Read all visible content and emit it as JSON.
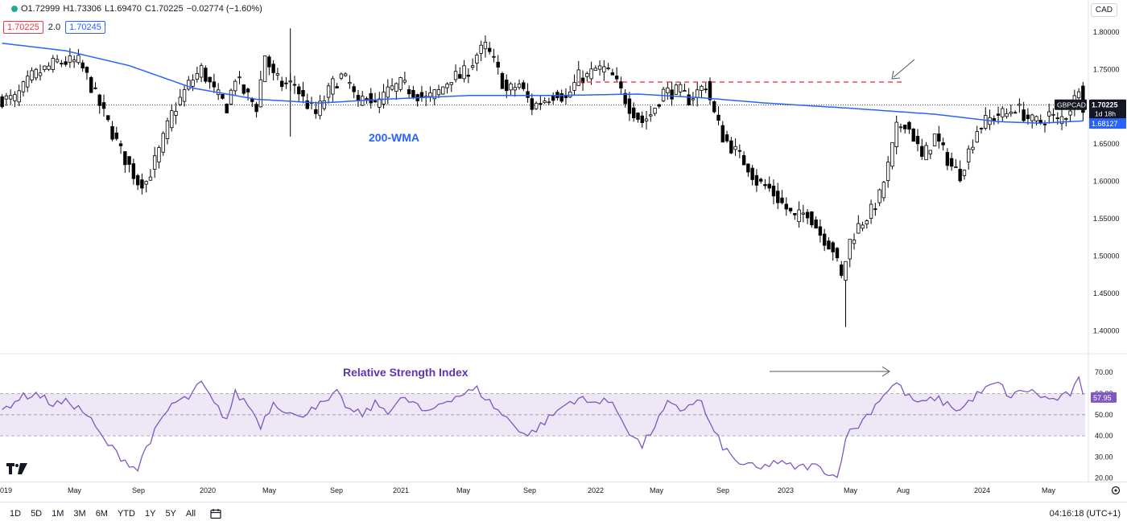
{
  "header": {
    "open": "O1.72999",
    "high": "H1.73306",
    "low": "L1.69470",
    "close": "C1.70225",
    "change": "−0.02774 (−1.60%)",
    "currency_button": "CAD",
    "indicator_chip_left": "1.70225",
    "indicator_param": "2.0",
    "indicator_chip_right": "1.70245",
    "status_color": "#22ab94"
  },
  "toolbar": {
    "timeframes": [
      "1D",
      "5D",
      "1M",
      "3M",
      "6M",
      "YTD",
      "1Y",
      "5Y",
      "All"
    ],
    "clock": "04:16:18 (UTC+1)",
    "calendar_icon": "calendar-range-icon",
    "settings_icon": "gear-icon"
  },
  "chart_data": [
    {
      "type": "candlestick",
      "symbol": "GBPCAD",
      "last_price": "1.70225",
      "countdown": "1d 18h",
      "ma_label": "1.68127",
      "annotations": {
        "ma_text": "200-WMA",
        "resistance_level": 1.733
      },
      "ylim": [
        1.38,
        1.83
      ],
      "y_ticks": [
        "1.80000",
        "1.75000",
        "1.70000",
        "1.65000",
        "1.60000",
        "1.55000",
        "1.50000",
        "1.45000",
        "1.40000"
      ],
      "x_ticks": [
        "019",
        "May",
        "Sep",
        "2020",
        "May",
        "Sep",
        "2021",
        "May",
        "Sep",
        "2022",
        "May",
        "Sep",
        "2023",
        "May",
        "Aug",
        "2024",
        "May"
      ],
      "colors": {
        "up": "#ffffff",
        "down": "#000000",
        "wick": "#000000",
        "ma": "#2962ff",
        "resistance": "#f23645",
        "pane_bg": "#ffffff"
      },
      "anchors": [
        [
          0,
          1.71
        ],
        [
          3,
          1.71
        ],
        [
          7,
          1.74
        ],
        [
          10,
          1.75
        ],
        [
          13,
          1.76
        ],
        [
          15,
          1.76
        ],
        [
          18,
          1.76
        ],
        [
          20,
          1.74
        ],
        [
          24,
          1.69
        ],
        [
          28,
          1.64
        ],
        [
          32,
          1.6
        ],
        [
          34,
          1.6
        ],
        [
          37,
          1.64
        ],
        [
          40,
          1.69
        ],
        [
          44,
          1.73
        ],
        [
          47,
          1.75
        ],
        [
          50,
          1.72
        ],
        [
          53,
          1.7
        ],
        [
          55,
          1.74
        ],
        [
          57,
          1.72
        ],
        [
          60,
          1.7
        ],
        [
          62,
          1.77
        ],
        [
          64,
          1.74
        ],
        [
          66,
          1.73
        ],
        [
          69,
          1.73
        ],
        [
          71,
          1.71
        ],
        [
          74,
          1.69
        ],
        [
          78,
          1.73
        ],
        [
          80,
          1.74
        ],
        [
          82,
          1.73
        ],
        [
          84,
          1.7
        ],
        [
          86,
          1.72
        ],
        [
          88,
          1.7
        ],
        [
          91,
          1.72
        ],
        [
          94,
          1.73
        ],
        [
          97,
          1.72
        ],
        [
          100,
          1.71
        ],
        [
          103,
          1.72
        ],
        [
          106,
          1.74
        ],
        [
          108,
          1.74
        ],
        [
          110,
          1.75
        ],
        [
          112,
          1.77
        ],
        [
          114,
          1.78
        ],
        [
          116,
          1.76
        ],
        [
          119,
          1.72
        ],
        [
          122,
          1.73
        ],
        [
          125,
          1.7
        ],
        [
          128,
          1.71
        ],
        [
          131,
          1.72
        ],
        [
          133,
          1.71
        ],
        [
          136,
          1.74
        ],
        [
          138,
          1.74
        ],
        [
          140,
          1.75
        ],
        [
          142,
          1.75
        ],
        [
          144,
          1.74
        ],
        [
          146,
          1.72
        ],
        [
          148,
          1.7
        ],
        [
          151,
          1.68
        ],
        [
          153,
          1.69
        ],
        [
          156,
          1.72
        ],
        [
          158,
          1.72
        ],
        [
          160,
          1.72
        ],
        [
          162,
          1.71
        ],
        [
          164,
          1.72
        ],
        [
          166,
          1.73
        ],
        [
          168,
          1.69
        ],
        [
          170,
          1.66
        ],
        [
          173,
          1.64
        ],
        [
          176,
          1.62
        ],
        [
          178,
          1.6
        ],
        [
          181,
          1.59
        ],
        [
          184,
          1.57
        ],
        [
          187,
          1.55
        ],
        [
          190,
          1.56
        ],
        [
          193,
          1.53
        ],
        [
          196,
          1.51
        ],
        [
          198,
          1.47
        ],
        [
          200,
          1.52
        ],
        [
          202,
          1.54
        ],
        [
          205,
          1.56
        ],
        [
          207,
          1.58
        ],
        [
          209,
          1.62
        ],
        [
          211,
          1.67
        ],
        [
          213,
          1.68
        ],
        [
          215,
          1.66
        ],
        [
          217,
          1.63
        ],
        [
          220,
          1.66
        ],
        [
          222,
          1.64
        ],
        [
          224,
          1.62
        ],
        [
          226,
          1.61
        ],
        [
          228,
          1.64
        ],
        [
          230,
          1.67
        ],
        [
          232,
          1.68
        ],
        [
          235,
          1.69
        ],
        [
          237,
          1.69
        ],
        [
          239,
          1.7
        ],
        [
          241,
          1.69
        ],
        [
          243,
          1.68
        ],
        [
          245,
          1.68
        ],
        [
          247,
          1.69
        ],
        [
          249,
          1.68
        ],
        [
          251,
          1.69
        ],
        [
          253,
          1.71
        ],
        [
          254,
          1.73
        ],
        [
          255,
          1.702
        ]
      ],
      "ma_path": [
        [
          0,
          1.785
        ],
        [
          15,
          1.775
        ],
        [
          30,
          1.755
        ],
        [
          45,
          1.725
        ],
        [
          60,
          1.71
        ],
        [
          75,
          1.705
        ],
        [
          90,
          1.71
        ],
        [
          110,
          1.715
        ],
        [
          130,
          1.715
        ],
        [
          150,
          1.717
        ],
        [
          165,
          1.712
        ],
        [
          180,
          1.705
        ],
        [
          200,
          1.698
        ],
        [
          220,
          1.69
        ],
        [
          235,
          1.68
        ],
        [
          245,
          1.678
        ],
        [
          255,
          1.681
        ]
      ]
    },
    {
      "type": "line",
      "title": "Relative Strength Index",
      "last_value": "57.95",
      "ylim": [
        18,
        75
      ],
      "y_ticks": [
        "70.00",
        "60.00",
        "50.00",
        "40.00",
        "30.00",
        "20.00"
      ],
      "band": [
        40,
        60
      ],
      "colors": {
        "line": "#7e57c2",
        "band_fill": "#ede7f6"
      },
      "anchors": [
        [
          0,
          52
        ],
        [
          4,
          58
        ],
        [
          8,
          60
        ],
        [
          12,
          55
        ],
        [
          16,
          56
        ],
        [
          20,
          50
        ],
        [
          24,
          38
        ],
        [
          28,
          30
        ],
        [
          32,
          24
        ],
        [
          34,
          35
        ],
        [
          37,
          45
        ],
        [
          40,
          55
        ],
        [
          44,
          58
        ],
        [
          47,
          65
        ],
        [
          50,
          55
        ],
        [
          53,
          48
        ],
        [
          55,
          60
        ],
        [
          58,
          55
        ],
        [
          61,
          45
        ],
        [
          64,
          56
        ],
        [
          67,
          52
        ],
        [
          70,
          48
        ],
        [
          73,
          54
        ],
        [
          76,
          55
        ],
        [
          79,
          60
        ],
        [
          82,
          52
        ],
        [
          85,
          50
        ],
        [
          88,
          55
        ],
        [
          91,
          52
        ],
        [
          94,
          57
        ],
        [
          97,
          56
        ],
        [
          100,
          50
        ],
        [
          103,
          55
        ],
        [
          106,
          58
        ],
        [
          109,
          60
        ],
        [
          112,
          62
        ],
        [
          115,
          56
        ],
        [
          118,
          50
        ],
        [
          121,
          45
        ],
        [
          124,
          40
        ],
        [
          127,
          45
        ],
        [
          130,
          50
        ],
        [
          133,
          55
        ],
        [
          136,
          58
        ],
        [
          139,
          55
        ],
        [
          142,
          58
        ],
        [
          145,
          52
        ],
        [
          148,
          42
        ],
        [
          151,
          35
        ],
        [
          154,
          45
        ],
        [
          157,
          55
        ],
        [
          160,
          52
        ],
        [
          163,
          56
        ],
        [
          165,
          56
        ],
        [
          167,
          45
        ],
        [
          170,
          35
        ],
        [
          173,
          28
        ],
        [
          176,
          26
        ],
        [
          179,
          24
        ],
        [
          182,
          28
        ],
        [
          185,
          26
        ],
        [
          188,
          25
        ],
        [
          191,
          26
        ],
        [
          194,
          24
        ],
        [
          197,
          20
        ],
        [
          199,
          40
        ],
        [
          202,
          45
        ],
        [
          205,
          52
        ],
        [
          208,
          60
        ],
        [
          211,
          65
        ],
        [
          214,
          58
        ],
        [
          217,
          55
        ],
        [
          220,
          58
        ],
        [
          223,
          55
        ],
        [
          226,
          52
        ],
        [
          229,
          58
        ],
        [
          232,
          62
        ],
        [
          235,
          65
        ],
        [
          238,
          58
        ],
        [
          241,
          62
        ],
        [
          244,
          60
        ],
        [
          247,
          57
        ],
        [
          250,
          58
        ],
        [
          252,
          60
        ],
        [
          254,
          66
        ],
        [
          255,
          58
        ]
      ]
    }
  ]
}
